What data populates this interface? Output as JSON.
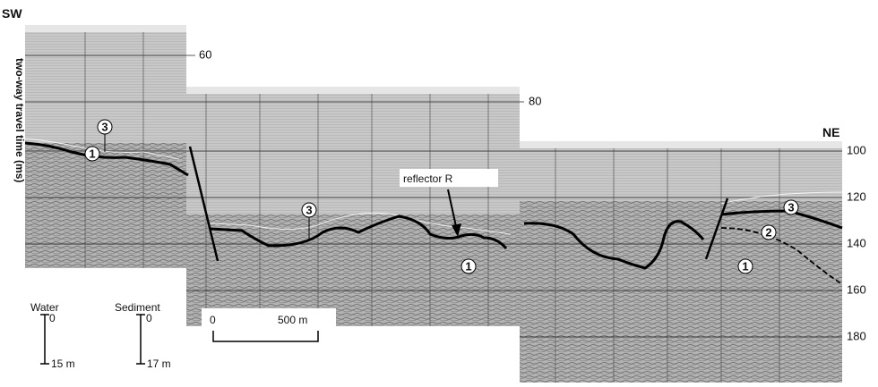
{
  "labels": {
    "sw": "SW",
    "ne": "NE",
    "y_axis": "two-way travel time (ms)"
  },
  "time_ticks": [
    "60",
    "80",
    "100",
    "120",
    "140",
    "160",
    "180"
  ],
  "annotations": [
    "3",
    "1",
    "3",
    "reflector R",
    "1",
    "3",
    "2",
    "1"
  ],
  "scales": {
    "water": {
      "label": "Water",
      "top": "0",
      "bottom": "15 m"
    },
    "sediment": {
      "label": "Sediment",
      "top": "0",
      "bottom": "17 m"
    },
    "horizontal": {
      "start": "0",
      "end": "500 m"
    }
  }
}
